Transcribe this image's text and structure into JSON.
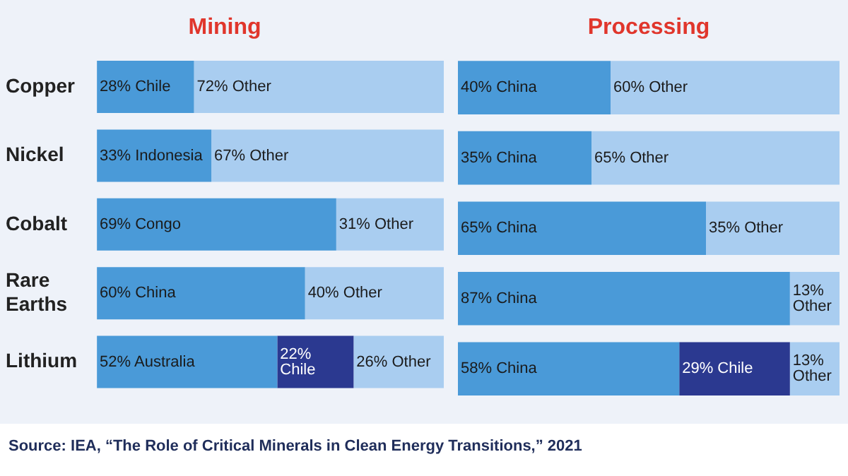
{
  "chart_data": [
    {
      "type": "bar",
      "title": "Mining",
      "orientation": "horizontal",
      "stacked": true,
      "tick_labels": "y",
      "xlim": [
        0,
        100
      ],
      "categories": [
        "Copper",
        "Nickel",
        "Cobalt",
        "Rare Earths",
        "Lithium"
      ],
      "series": [
        {
          "color": "#4a9ad8",
          "values": [
            28,
            33,
            69,
            60,
            52
          ],
          "value_labels": [
            "28% Chile",
            "33% Indonesia",
            "69% Congo",
            "60% China",
            "52% Australia"
          ]
        },
        {
          "color": "#2b3990",
          "values": [
            null,
            null,
            null,
            null,
            22
          ],
          "value_labels": [
            null,
            null,
            null,
            null,
            "22% Chile"
          ]
        },
        {
          "color": "#a9cdf0",
          "values": [
            72,
            67,
            31,
            40,
            26
          ],
          "value_labels": [
            "72% Other",
            "67% Other",
            "31% Other",
            "40% Other",
            "26% Other"
          ]
        }
      ]
    },
    {
      "type": "bar",
      "title": "Processing",
      "orientation": "horizontal",
      "stacked": true,
      "tick_labels": false,
      "xlim": [
        0,
        100
      ],
      "categories": [
        null,
        null,
        null,
        null,
        null
      ],
      "annotations": [
        "Source: IEA, “The Role of Critical Minerals in Clean Energy Transitions,” 2021"
      ],
      "series": [
        {
          "color": "#4a9ad8",
          "values": [
            40,
            35,
            65,
            87,
            58
          ],
          "value_labels": [
            "40% China",
            "35% China",
            "65% China",
            "87% China",
            "58% China"
          ]
        },
        {
          "color": "#2b3990",
          "values": [
            null,
            null,
            null,
            null,
            29
          ],
          "value_labels": [
            null,
            null,
            null,
            null,
            "29% Chile"
          ]
        },
        {
          "color": "#a9cdf0",
          "values": [
            60,
            65,
            35,
            13,
            13
          ],
          "value_labels": [
            "60% Other",
            "65% Other",
            "35% Other",
            "13% Other",
            "13% Other"
          ]
        }
      ]
    }
  ]
}
